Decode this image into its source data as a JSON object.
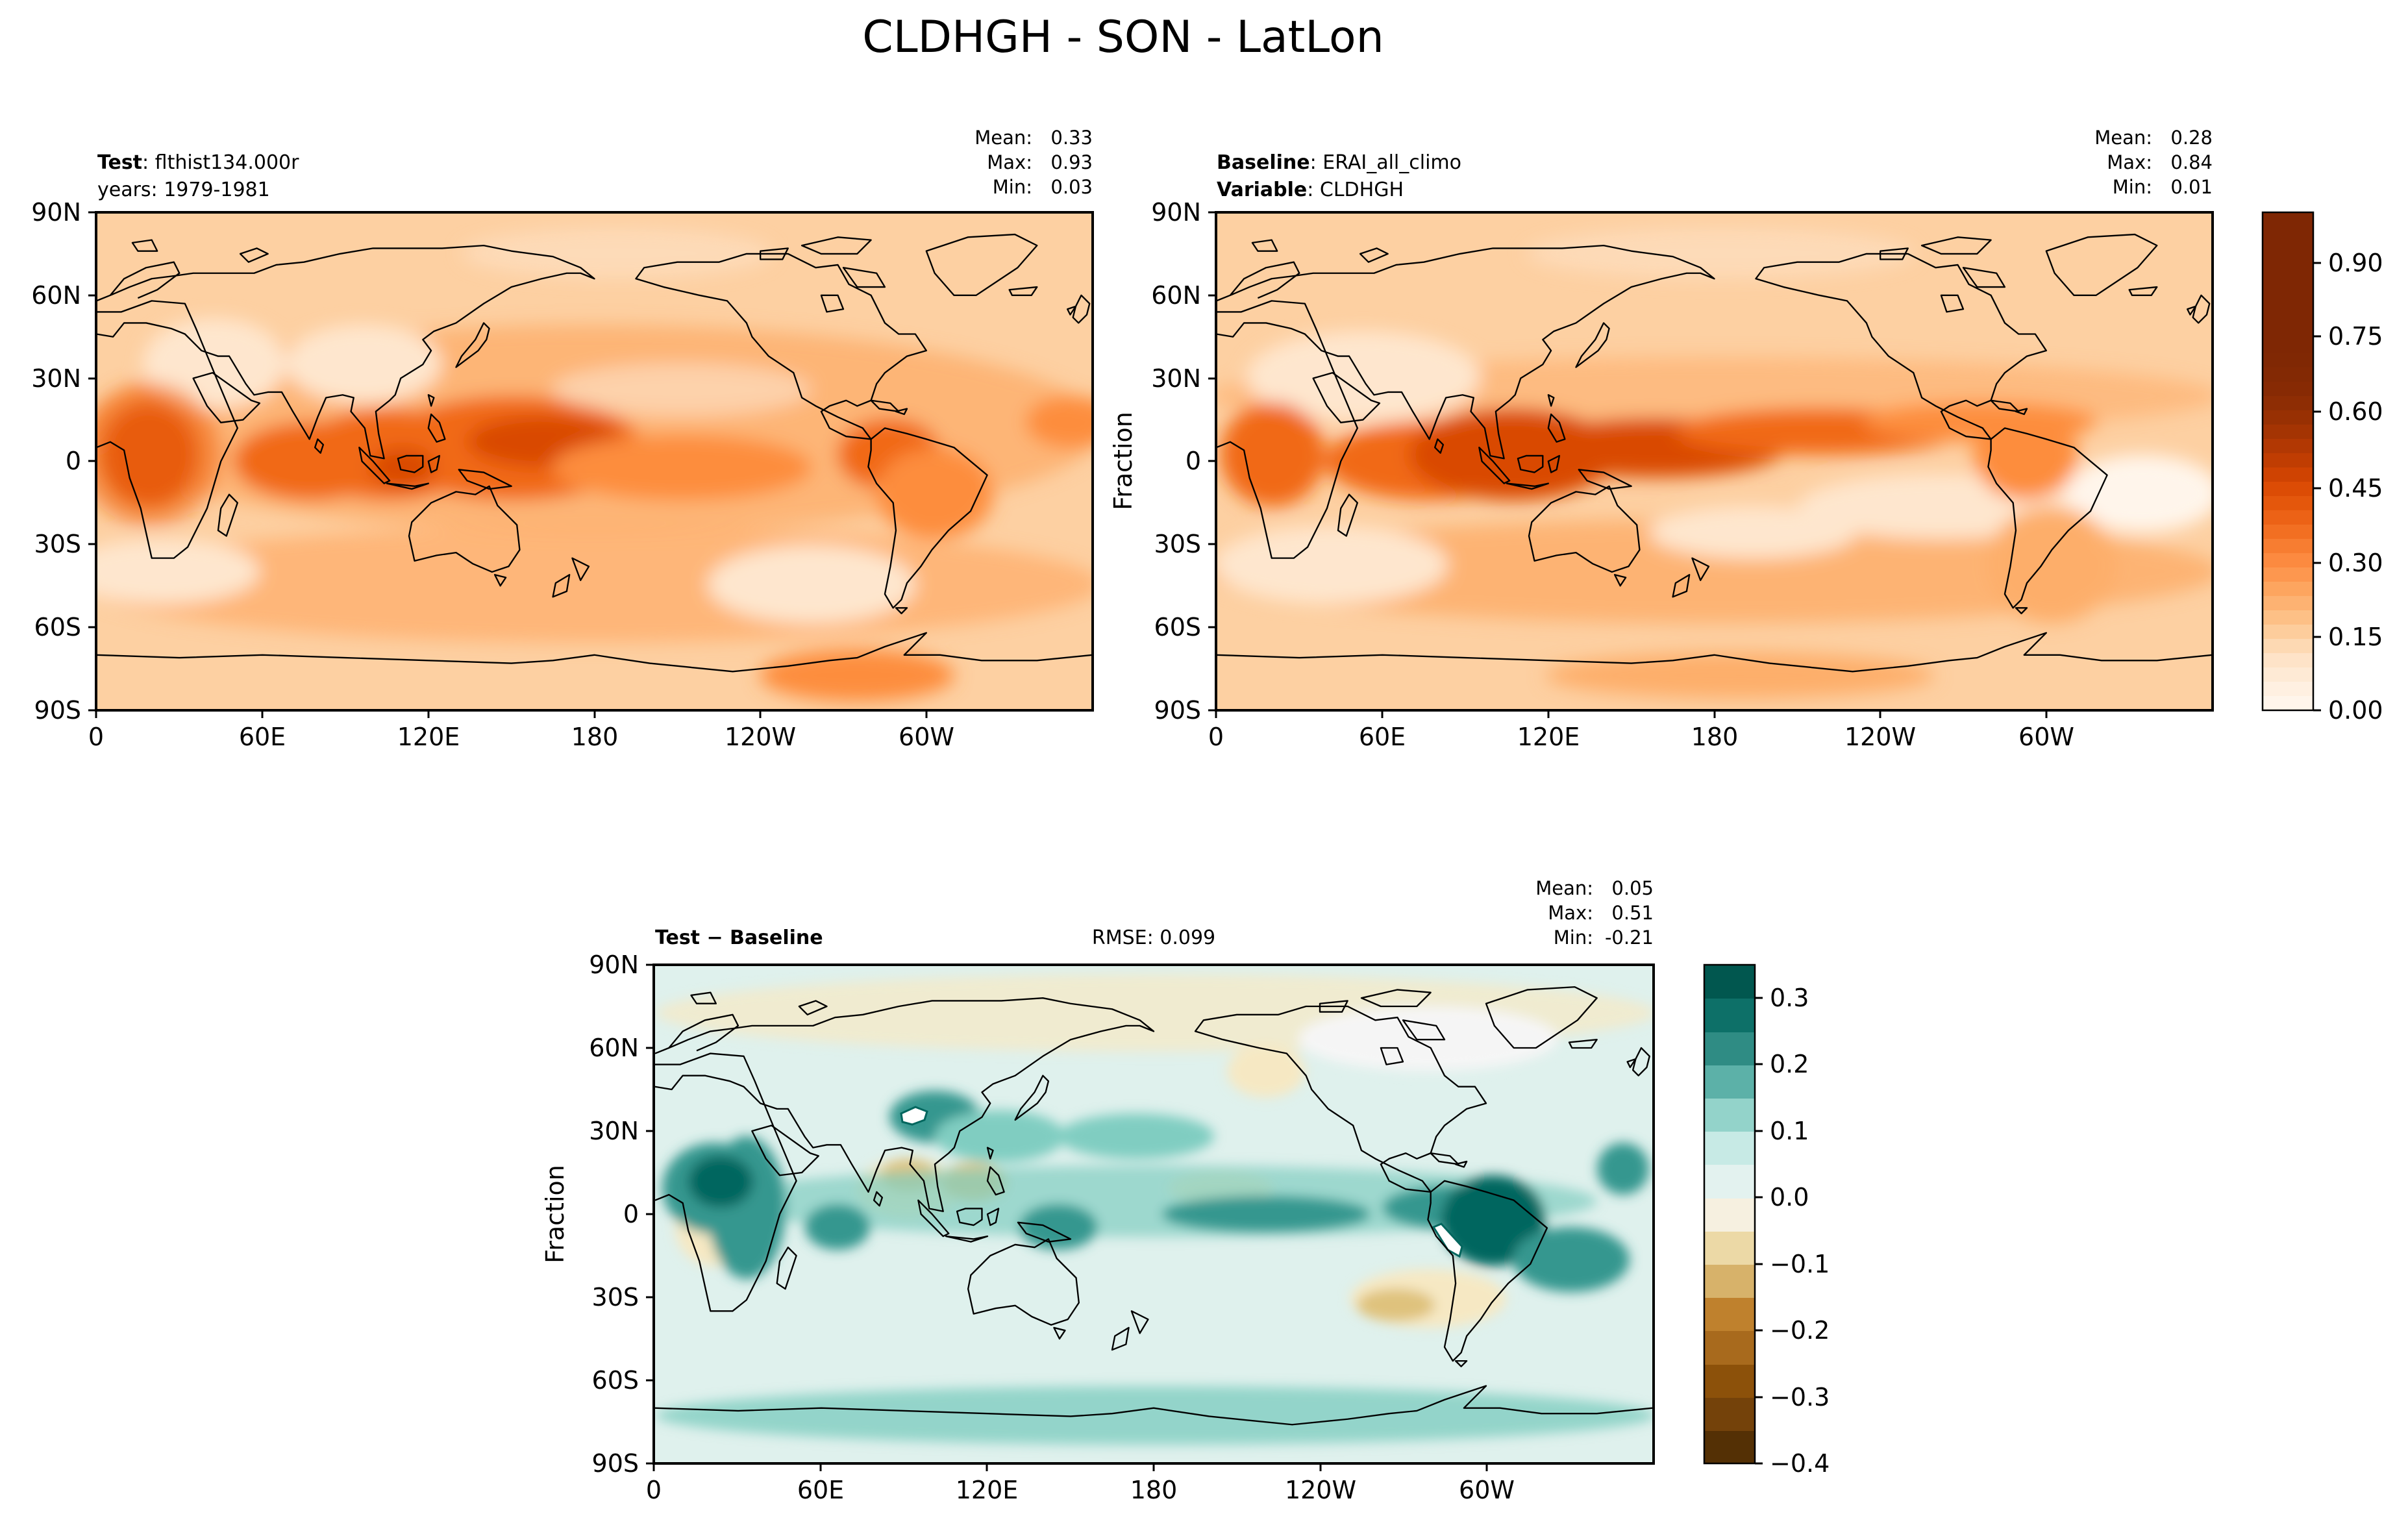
{
  "suptitle": "CLDHGH - SON - LatLon",
  "colors": {
    "orange_cmap": [
      "#fff5eb",
      "#fee6ce",
      "#fdd0a2",
      "#fdae6b",
      "#fd8d3c",
      "#f16913",
      "#d94801",
      "#a63603",
      "#7f2704"
    ],
    "diff_cmap": [
      "#543005",
      "#8c510a",
      "#bf812d",
      "#dfc27d",
      "#f6e8c3",
      "#f5f5f5",
      "#c7eae5",
      "#80cdc1",
      "#35978f",
      "#01665e",
      "#003c30"
    ],
    "axis": "#000000"
  },
  "lat_ticks": [
    "90N",
    "60N",
    "30N",
    "0",
    "30S",
    "60S",
    "90S"
  ],
  "lon_ticks": [
    "0",
    "60E",
    "120E",
    "180",
    "120W",
    "60W"
  ],
  "panels": {
    "test": {
      "left_title_bold": "Test",
      "left_title_rest": ": flthist134.000r",
      "left_title_line2": "years: 1979-1981",
      "stats": {
        "mean_label": "Mean:",
        "mean": "0.33",
        "max_label": "Max:",
        "max": "0.93",
        "min_label": "Min:",
        "min": "0.03"
      }
    },
    "baseline": {
      "left_title_bold": "Baseline",
      "left_title_rest": ": ERAI_all_climo",
      "left_title_line2_bold": "Variable",
      "left_title_line2_rest": ": CLDHGH",
      "ylabel": "Fraction",
      "stats": {
        "mean_label": "Mean:",
        "mean": "0.28",
        "max_label": "Max:",
        "max": "0.84",
        "min_label": "Min:",
        "min": "0.01"
      }
    },
    "diff": {
      "left_title": "Test − Baseline",
      "center_title": "RMSE: 0.099",
      "ylabel": "Fraction",
      "stats": {
        "mean_label": "Mean:",
        "mean": "0.05",
        "max_label": "Max:",
        "max": "0.51",
        "min_label": "Min:",
        "min": "-0.21"
      }
    }
  },
  "colorbars": {
    "top": {
      "ticks": [
        "0.00",
        "0.15",
        "0.30",
        "0.45",
        "0.60",
        "0.75",
        "0.90"
      ]
    },
    "bottom": {
      "ticks": [
        "0.3",
        "0.2",
        "0.1",
        "0.0",
        "−0.1",
        "−0.2",
        "−0.3",
        "−0.4"
      ]
    }
  }
}
